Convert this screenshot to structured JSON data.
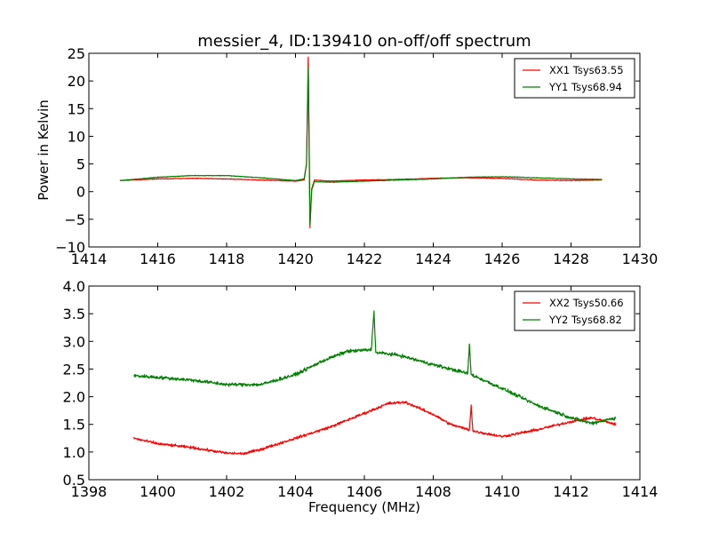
{
  "chart_data": [
    {
      "type": "line",
      "title": "messier_4, ID:139410 on-off/off spectrum",
      "xlabel": "",
      "ylabel": "Power in Kelvin",
      "xlim": [
        1414,
        1430
      ],
      "ylim": [
        -10,
        25
      ],
      "xticks": [
        "1414",
        "1416",
        "1418",
        "1420",
        "1422",
        "1424",
        "1426",
        "1428",
        "1430"
      ],
      "yticks": [
        "−10",
        "−5",
        "0",
        "5",
        "10",
        "15",
        "20",
        "25"
      ],
      "legend_position": "top-right",
      "grid": false,
      "series": [
        {
          "name": "XX1 Tsys63.55",
          "color": "#ff0000",
          "noise": 0.08,
          "x": [
            1414.9,
            1416,
            1417,
            1418,
            1419,
            1420,
            1420.25,
            1420.32,
            1420.37,
            1420.42,
            1420.47,
            1420.55,
            1421,
            1422,
            1423,
            1424,
            1425,
            1426,
            1427,
            1428,
            1428.9
          ],
          "y": [
            2.0,
            2.3,
            2.4,
            2.3,
            2.1,
            1.9,
            2.1,
            5.0,
            24.3,
            -6.5,
            0.5,
            2.1,
            1.9,
            2.1,
            2.2,
            2.4,
            2.5,
            2.4,
            2.1,
            2.0,
            2.1
          ]
        },
        {
          "name": "YY1 Tsys68.94",
          "color": "#008000",
          "noise": 0.08,
          "x": [
            1414.9,
            1416,
            1417,
            1418,
            1419,
            1420,
            1420.25,
            1420.32,
            1420.37,
            1420.42,
            1420.47,
            1420.55,
            1421,
            1422,
            1423,
            1424,
            1425,
            1426,
            1427,
            1428,
            1428.9
          ],
          "y": [
            2.0,
            2.6,
            2.9,
            2.9,
            2.5,
            2.0,
            2.3,
            5.0,
            22.5,
            -6.0,
            0.3,
            1.8,
            1.7,
            1.9,
            2.1,
            2.3,
            2.6,
            2.7,
            2.5,
            2.3,
            2.2
          ]
        }
      ]
    },
    {
      "type": "line",
      "title": "",
      "xlabel": "Frequency (MHz)",
      "ylabel": "",
      "xlim": [
        1398,
        1414
      ],
      "ylim": [
        0.5,
        4.0
      ],
      "xticks": [
        "1398",
        "1400",
        "1402",
        "1404",
        "1406",
        "1408",
        "1410",
        "1412",
        "1414"
      ],
      "yticks": [
        "0.5",
        "1.0",
        "1.5",
        "2.0",
        "2.5",
        "3.0",
        "3.5",
        "4.0"
      ],
      "legend_position": "top-right",
      "grid": false,
      "series": [
        {
          "name": "XX2 Tsys50.66",
          "color": "#ff0000",
          "noise": 0.035,
          "x": [
            1399.3,
            1400,
            1401,
            1402,
            1402.5,
            1403,
            1404,
            1405,
            1406,
            1406.7,
            1407.2,
            1408,
            1408.5,
            1409.05,
            1409.1,
            1409.15,
            1410,
            1411,
            1412,
            1412.6,
            1413.3
          ],
          "y": [
            1.25,
            1.15,
            1.08,
            0.98,
            0.97,
            1.05,
            1.25,
            1.45,
            1.7,
            1.88,
            1.9,
            1.68,
            1.5,
            1.4,
            1.85,
            1.38,
            1.28,
            1.4,
            1.55,
            1.62,
            1.5
          ]
        },
        {
          "name": "YY2 Tsys68.82",
          "color": "#008000",
          "noise": 0.045,
          "x": [
            1399.3,
            1400,
            1401,
            1402,
            1403,
            1404,
            1404.8,
            1405.5,
            1406.2,
            1406.28,
            1406.33,
            1407,
            1408,
            1409,
            1409.05,
            1409.1,
            1410,
            1411,
            1412,
            1412.6,
            1413.3
          ],
          "y": [
            2.38,
            2.35,
            2.3,
            2.22,
            2.22,
            2.4,
            2.65,
            2.82,
            2.85,
            3.55,
            2.8,
            2.75,
            2.58,
            2.42,
            2.95,
            2.4,
            2.15,
            1.85,
            1.62,
            1.52,
            1.62
          ]
        }
      ]
    }
  ]
}
